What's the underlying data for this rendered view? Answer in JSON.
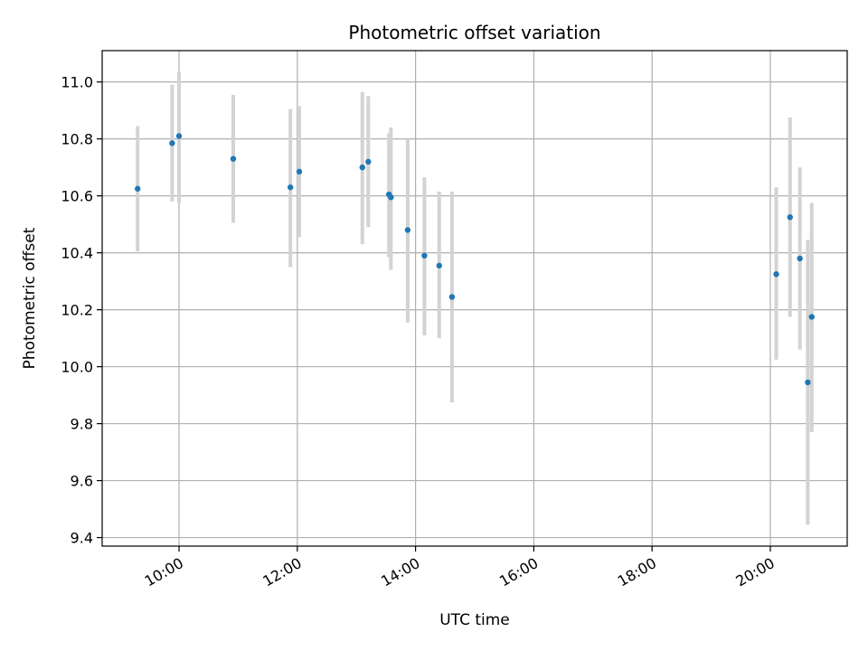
{
  "chart_data": {
    "type": "scatter",
    "title": "Photometric offset variation",
    "xlabel": "UTC time",
    "ylabel": "Photometric offset",
    "x_axis_type": "time-of-day",
    "xlim": [
      "08:42",
      "21:18"
    ],
    "ylim": [
      9.37,
      11.11
    ],
    "x_ticks": [
      "10:00",
      "12:00",
      "14:00",
      "16:00",
      "18:00",
      "20:00"
    ],
    "y_ticks": [
      "9.4",
      "9.6",
      "9.8",
      "10.0",
      "10.2",
      "10.4",
      "10.6",
      "10.8",
      "11.0"
    ],
    "grid": true,
    "legend": "none",
    "marker_color": "#1f77b4",
    "errorbar_color": "#d3d3d3",
    "points": [
      {
        "x": "09:18",
        "y": 10.625,
        "low": 10.405,
        "high": 10.845
      },
      {
        "x": "09:53",
        "y": 10.785,
        "low": 10.58,
        "high": 10.99
      },
      {
        "x": "10:00",
        "y": 10.81,
        "low": 10.575,
        "high": 11.035
      },
      {
        "x": "10:55",
        "y": 10.73,
        "low": 10.505,
        "high": 10.955
      },
      {
        "x": "11:53",
        "y": 10.63,
        "low": 10.35,
        "high": 10.905
      },
      {
        "x": "12:02",
        "y": 10.685,
        "low": 10.455,
        "high": 10.915
      },
      {
        "x": "13:06",
        "y": 10.7,
        "low": 10.43,
        "high": 10.965
      },
      {
        "x": "13:12",
        "y": 10.72,
        "low": 10.49,
        "high": 10.95
      },
      {
        "x": "13:33",
        "y": 10.605,
        "low": 10.385,
        "high": 10.82
      },
      {
        "x": "13:35",
        "y": 10.595,
        "low": 10.34,
        "high": 10.84
      },
      {
        "x": "13:52",
        "y": 10.48,
        "low": 10.155,
        "high": 10.8
      },
      {
        "x": "14:09",
        "y": 10.39,
        "low": 10.11,
        "high": 10.665
      },
      {
        "x": "14:24",
        "y": 10.355,
        "low": 10.1,
        "high": 10.615
      },
      {
        "x": "14:37",
        "y": 10.245,
        "low": 9.875,
        "high": 10.615
      },
      {
        "x": "20:06",
        "y": 10.325,
        "low": 10.025,
        "high": 10.63
      },
      {
        "x": "20:20",
        "y": 10.525,
        "low": 10.175,
        "high": 10.875
      },
      {
        "x": "20:30",
        "y": 10.38,
        "low": 10.06,
        "high": 10.7
      },
      {
        "x": "20:38",
        "y": 9.945,
        "low": 9.445,
        "high": 10.445
      },
      {
        "x": "20:42",
        "y": 10.175,
        "low": 9.77,
        "high": 10.575
      }
    ]
  }
}
